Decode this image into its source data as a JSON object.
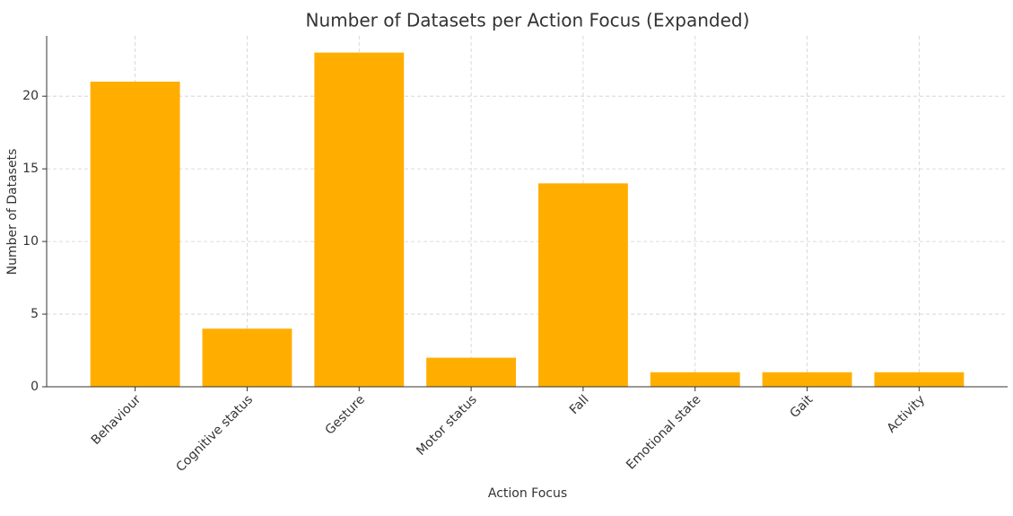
{
  "chart_data": {
    "type": "bar",
    "title": "Number of Datasets per Action Focus (Expanded)",
    "xlabel": "Action Focus",
    "ylabel": "Number of Datasets",
    "categories": [
      "Behaviour",
      "Cognitive status",
      "Gesture",
      "Motor status",
      "Fall",
      "Emotional state",
      "Gait",
      "Activity"
    ],
    "values": [
      21,
      4,
      23,
      2,
      14,
      1,
      1,
      1
    ],
    "color": "#ffae00",
    "ylim": [
      0,
      24.15
    ],
    "yticks": [
      0,
      5,
      10,
      15,
      20
    ],
    "grid": true
  }
}
